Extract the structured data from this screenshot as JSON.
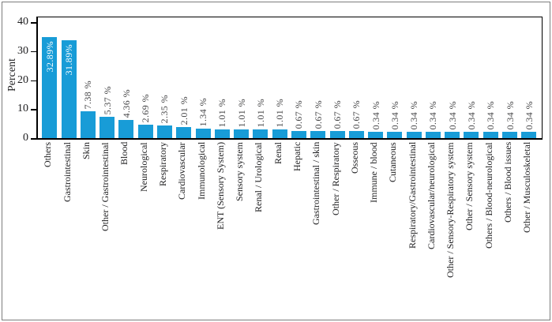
{
  "figure": {
    "background": "#ffffff",
    "border_color": "#7d7d7d"
  },
  "chart_data": {
    "type": "bar",
    "title": "",
    "xlabel": "",
    "ylabel": "Percent",
    "ylim": [
      0,
      40
    ],
    "yticks": [
      0,
      10,
      20,
      30,
      40
    ],
    "grid": false,
    "legend_position": "none",
    "bar_color": "#189cd7",
    "value_label_color_outside": "#454547",
    "value_label_color_inside": "#ffffff",
    "categories": [
      "Others",
      "Gastrointestinal",
      "Skin",
      "Other / Gastrointestinal",
      "Blood",
      "Neurological",
      "Respiratory",
      "Cardiovascular",
      "Immunological",
      "ENT (Sensory System)",
      "Sensory system",
      "Renal / Urological",
      "Renal",
      "Hepatic",
      "Gastrointestinal / skin",
      "Other / Respiratory",
      "Osseous",
      "Immune / blood",
      "Cutaneous",
      "Respiratory/Gastrointestinal",
      "Cardiovascular/neurological",
      "Other / Sensory-Respiratory system",
      "Other / Sensory system",
      "Others / Blood-neurological",
      "Others / Blood issues",
      "Other / Musculoskeletal"
    ],
    "values": [
      32.89,
      31.89,
      7.38,
      5.37,
      4.36,
      2.69,
      2.35,
      2.01,
      1.34,
      1.01,
      1.01,
      1.01,
      1.01,
      0.67,
      0.67,
      0.67,
      0.67,
      0.34,
      0.34,
      0.34,
      0.34,
      0.34,
      0.34,
      0.34,
      0.34,
      0.34
    ],
    "value_labels": [
      "32.89%",
      "31.89%",
      "7.38 %",
      "5.37 %",
      "4.36 %",
      "2.69 %",
      "2.35 %",
      "2.01 %",
      "1.34 %",
      "1.01 %",
      "1.01 %",
      "1.01 %",
      "1.01 %",
      "0.67 %",
      "0.67 %",
      "0.67 %",
      "0.67 %",
      "0.34 %",
      "0.34 %",
      "0.34 %",
      "0.34 %",
      "0.34 %",
      "0.34 %",
      "0.34 %",
      "0.34 %",
      "0.34 %"
    ]
  }
}
